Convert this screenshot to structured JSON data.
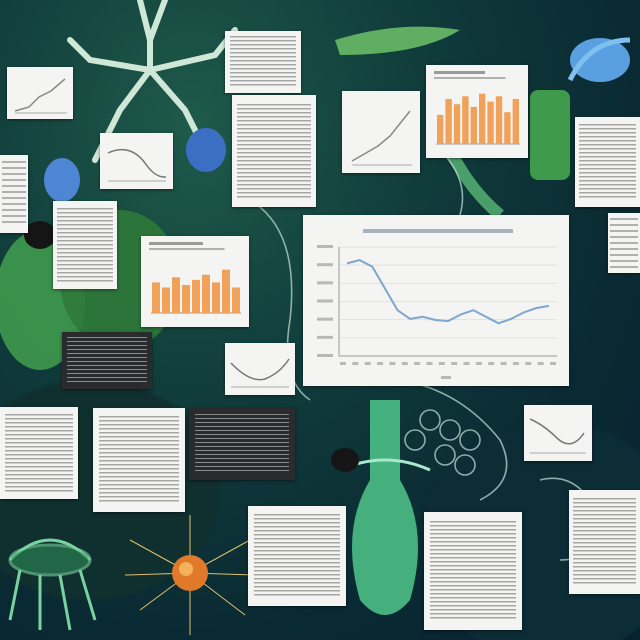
{
  "colors": {
    "background": "#0f3a3a",
    "paper": "#f4f5f3",
    "line_series": "#7ea6cf",
    "bar_series": "#f0a25a",
    "foliage": "#3f9a4c",
    "bloom": "#4f86d4"
  },
  "icons": [
    "tree-branch-illustration",
    "blue-flower-illustration",
    "leaf-illustration",
    "jellyfish-illustration",
    "orange-cell-illustration",
    "green-vase-illustration"
  ],
  "panels": {
    "line_chart_main": {
      "shape": "wavy-line-descending-then-flat",
      "series_color": "#7ea6cf"
    },
    "bar_chart_top": {
      "bar_count": 10,
      "series_color": "#f0a25a"
    },
    "bar_chart_mid": {
      "bar_count": 9,
      "series_color": "#f0a25a"
    }
  }
}
